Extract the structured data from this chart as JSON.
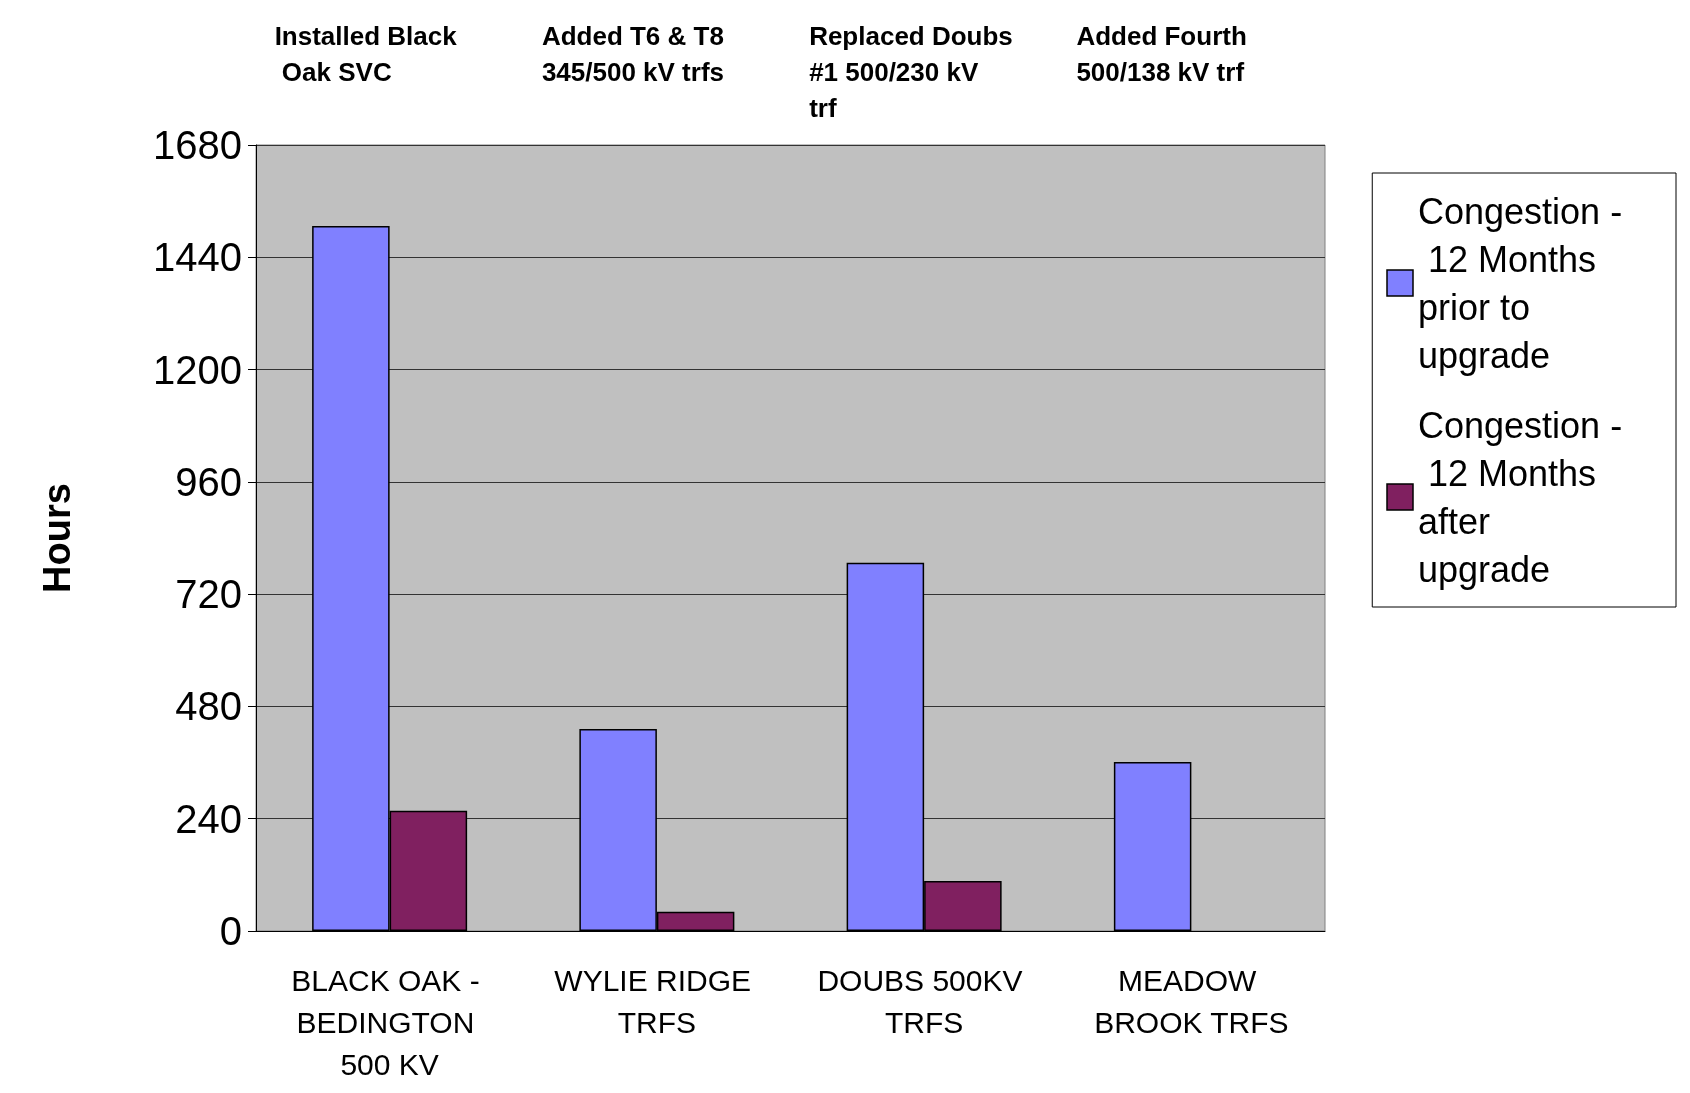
{
  "chart_data": {
    "type": "bar",
    "ylabel": "Hours",
    "categories": [
      "BLACK OAK - BEDINGTON 500 KV",
      "WYLIE RIDGE TRFS",
      "DOUBS 500KV TRFS",
      "MEADOW BROOK TRFS"
    ],
    "series": [
      {
        "name": "Congestion - 12 Months prior to upgrade",
        "color": "#8080ff",
        "values": [
          1507,
          432,
          787,
          361
        ]
      },
      {
        "name": "Congestion - 12 Months after upgrade",
        "color": "#802060",
        "values": [
          257,
          41,
          107,
          null
        ]
      }
    ],
    "annotations": [
      "Installed Black Oak SVC",
      "Added T6 & T8 345/500 kV trfs",
      "Replaced Doubs #1 500/230 kV trf",
      "Added Fourth 500/138 kV trf"
    ],
    "ylim": [
      0,
      1680
    ],
    "yticks": [
      0,
      240,
      480,
      720,
      960,
      1200,
      1440,
      1680
    ],
    "grid": "y",
    "legend": "right"
  }
}
